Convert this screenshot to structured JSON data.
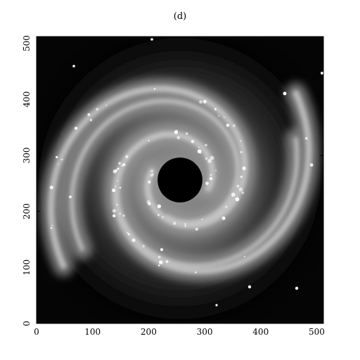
{
  "figure": {
    "panel_label": "(d)",
    "image": {
      "subject": "spiral galaxy",
      "central_mask": {
        "center": [
          256,
          256
        ],
        "radius": 40
      }
    },
    "axes": {
      "x": {
        "range": [
          0,
          512
        ],
        "ticks": [
          0,
          100,
          200,
          300,
          400,
          500
        ],
        "tick_labels": [
          "0",
          "100",
          "200",
          "300",
          "400",
          "500"
        ]
      },
      "y": {
        "range": [
          0,
          512
        ],
        "ticks": [
          0,
          100,
          200,
          300,
          400,
          500
        ],
        "tick_labels": [
          "0",
          "100",
          "200",
          "300",
          "400",
          "500"
        ]
      }
    },
    "colors": {
      "background": "#ffffff",
      "frame": "#000000",
      "mask": "#000000"
    }
  }
}
